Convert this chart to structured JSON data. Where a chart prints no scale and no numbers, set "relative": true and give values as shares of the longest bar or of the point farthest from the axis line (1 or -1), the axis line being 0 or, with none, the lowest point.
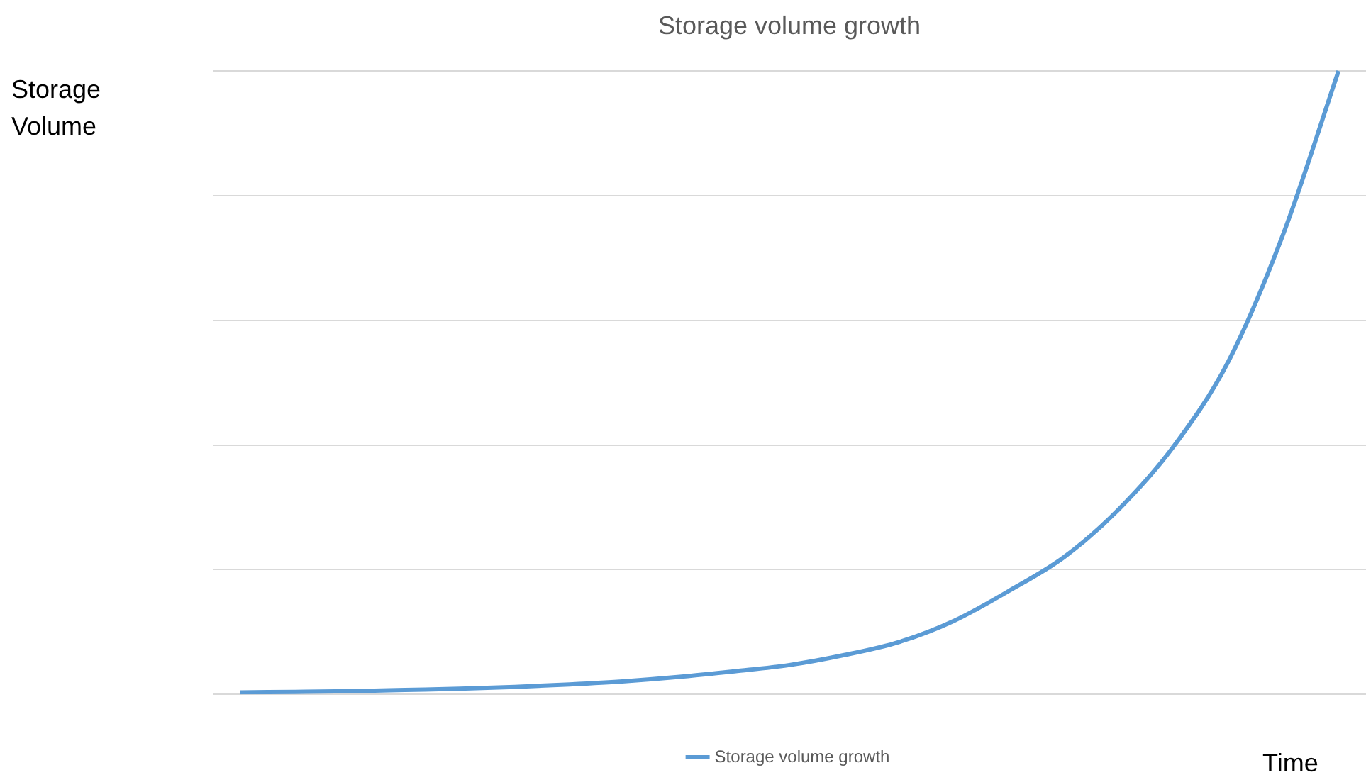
{
  "chart_data": {
    "type": "line",
    "title": "Storage volume growth",
    "xlabel": "Time",
    "ylabel": "Storage Volume",
    "relative": true,
    "grid": "y",
    "legend": "bottom",
    "marker": "none",
    "line_style": "solid",
    "categories": [
      null,
      null,
      null,
      null,
      null,
      null,
      null,
      null,
      null,
      null,
      null,
      null,
      null,
      null,
      null,
      null,
      null,
      null,
      null,
      null,
      null
    ],
    "series": [
      {
        "name": "Storage volume growth",
        "color": "#5b9bd5",
        "values": [
          0.003,
          0.004,
          0.005,
          0.007,
          0.009,
          0.012,
          0.016,
          0.021,
          0.028,
          0.037,
          0.047,
          0.063,
          0.084,
          0.118,
          0.166,
          0.22,
          0.297,
          0.398,
          0.535,
          0.74,
          1
        ]
      }
    ]
  }
}
